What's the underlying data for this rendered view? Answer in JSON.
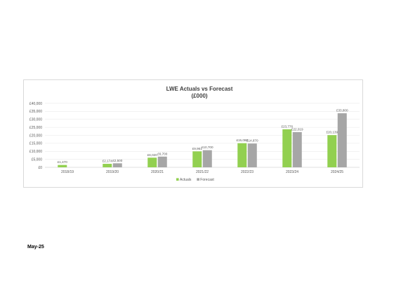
{
  "footer": {
    "date_label": "May-25"
  },
  "chart_data": {
    "type": "bar",
    "title": "LWE Actuals vs Forecast",
    "subtitle": "(£000)",
    "categories": [
      "2018/19",
      "2019/20",
      "2020/21",
      "2021/22",
      "2022/23",
      "2023/24",
      "2024/25"
    ],
    "series": [
      {
        "name": "Actuals",
        "color": "#92d050",
        "values": [
          1470,
          2174,
          6020,
          9961,
          15080,
          23776,
          20139
        ],
        "labels": [
          "£1,470",
          "£2,174",
          "£6,020",
          "£9,961",
          "£15,080",
          "£23,776",
          "£20,139"
        ]
      },
      {
        "name": "Forecast",
        "color": "#a6a6a6",
        "values": [
          null,
          2500,
          6700,
          10700,
          14870,
          22019,
          33800
        ],
        "labels": [
          "",
          "£2,500",
          "£6,700",
          "£10,700",
          "£14,870",
          "£22,019",
          "£33,800"
        ]
      }
    ],
    "yticks": [
      0,
      5000,
      10000,
      15000,
      20000,
      25000,
      30000,
      35000,
      40000
    ],
    "ytick_labels": [
      "£0",
      "£5,000",
      "£10,000",
      "£15,000",
      "£20,000",
      "£25,000",
      "£30,000",
      "£35,000",
      "£40,000"
    ],
    "ylim": [
      0,
      40000
    ],
    "grid": true,
    "legend_position": "bottom"
  }
}
